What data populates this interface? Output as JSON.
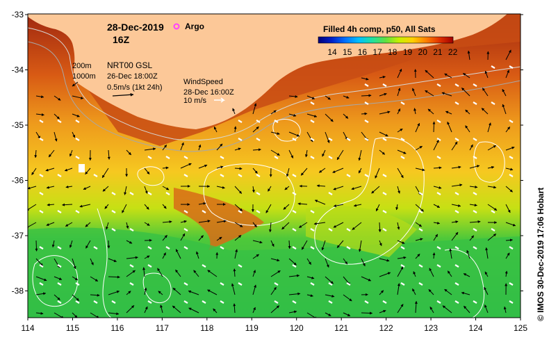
{
  "header": {
    "date": "28-Dec-2019",
    "hour": "16Z",
    "argo_label": "Argo"
  },
  "legend": {
    "title": "Filled 4h comp, p50, All Sats",
    "ticks": [
      "14",
      "15",
      "16",
      "17",
      "18",
      "19",
      "20",
      "21",
      "22"
    ],
    "colors": [
      "#00007a",
      "#0020c8",
      "#0070ff",
      "#00c0ff",
      "#20e0a0",
      "#60e040",
      "#c8f000",
      "#ffd000",
      "#ff8000",
      "#e03000",
      "#a00000"
    ]
  },
  "contours": {
    "label_200": "200m",
    "label_1000": "1000m"
  },
  "currents": {
    "title": "NRT00 GSL",
    "time": "26-Dec 18:00Z",
    "scale": "0.5m/s (1kt 24h)"
  },
  "wind": {
    "title": "WindSpeed",
    "time": "28-Dec 16:00Z",
    "scale": "10 m/s"
  },
  "axes": {
    "x_ticks": [
      "114",
      "115",
      "116",
      "117",
      "118",
      "119",
      "120",
      "121",
      "122",
      "123",
      "124",
      "125"
    ],
    "y_ticks": [
      "-33",
      "-34",
      "-35",
      "-36",
      "-37",
      "-38"
    ]
  },
  "credit": "© IMOS 30-Dec-2019 17:06 Hobart",
  "colors": {
    "land": "#fcc898",
    "ocean_warm": "#e06018",
    "ocean_mid": "#f0b020",
    "ocean_cool": "#c8e010",
    "ocean_cold": "#30c040",
    "argo": "#ff40ff"
  }
}
